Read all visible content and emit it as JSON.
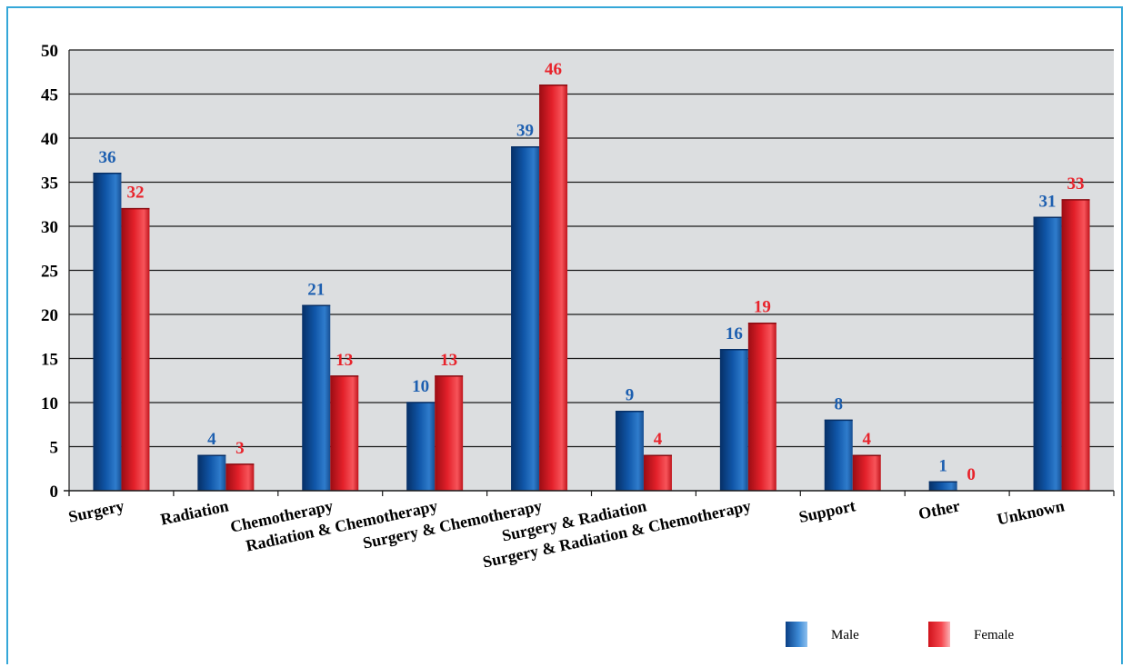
{
  "chart_data": {
    "type": "bar",
    "categories": [
      "Surgery",
      "Radiation",
      "Chemotherapy",
      "Radiation & Chemotherapy",
      "Surgery & Chemotherapy",
      "Surgery & Radiation",
      "Surgery & Radiation & Chemotherapy",
      "Support",
      "Other",
      "Unknown"
    ],
    "series": [
      {
        "name": "Male",
        "values": [
          36,
          4,
          21,
          10,
          39,
          9,
          16,
          8,
          1,
          31
        ],
        "labels": [
          "36",
          "4",
          "21",
          "10",
          "39",
          "9",
          "16",
          "8",
          "1",
          "31"
        ],
        "color": "#0d4f9e",
        "label_color": "#1d5fb0"
      },
      {
        "name": "Female",
        "values": [
          32,
          3,
          13,
          13,
          46,
          4,
          19,
          4,
          0,
          33
        ],
        "labels": [
          "32",
          "3",
          "13",
          "13",
          "46",
          "4",
          "19",
          "4",
          "0",
          "33"
        ],
        "color": "#e8232b",
        "label_color": "#e8232b"
      }
    ],
    "ylim": [
      0,
      50
    ],
    "yticks": [
      "0",
      "5",
      "10",
      "15",
      "20",
      "25",
      "30",
      "35",
      "40",
      "45",
      "50"
    ],
    "grid": true,
    "legend": "bottom-right",
    "background": "#dcdee0",
    "frame_color": "#35a7d8"
  }
}
